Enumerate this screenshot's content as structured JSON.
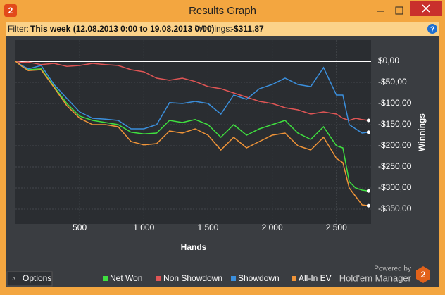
{
  "window": {
    "app_icon": "2",
    "title": "Results Graph",
    "filter_label": "Filter:",
    "filter_value": "This week (12.08.2013 0:00 to 19.08.2013 0:00)",
    "winnings_label": "Winnings:",
    "winnings_value": "-$311,87",
    "help": "?",
    "options_button": "Options",
    "powered_by": "Powered by",
    "brand": "Hold'em Manager",
    "brand_logo": "2"
  },
  "chart_data": {
    "type": "line",
    "x_label": "Hands",
    "y_label": "Winnings",
    "x": [
      0,
      50,
      100,
      200,
      300,
      400,
      500,
      600,
      700,
      800,
      900,
      1000,
      1100,
      1200,
      1300,
      1400,
      1500,
      1600,
      1700,
      1800,
      1900,
      2000,
      2100,
      2200,
      2300,
      2400,
      2500,
      2550,
      2600,
      2650,
      2700,
      2750
    ],
    "series": [
      {
        "name": "Net Won",
        "color": "#3fe03f",
        "values": [
          0,
          -12,
          -20,
          -18,
          -60,
          -100,
          -130,
          -140,
          -145,
          -150,
          -168,
          -172,
          -170,
          -140,
          -145,
          -138,
          -150,
          -180,
          -150,
          -175,
          -160,
          -150,
          -140,
          -170,
          -185,
          -155,
          -200,
          -205,
          -285,
          -300,
          -305,
          -307
        ]
      },
      {
        "name": "Non Showdown",
        "color": "#e05555",
        "values": [
          0,
          -3,
          -2,
          -8,
          -5,
          -12,
          -10,
          -5,
          -8,
          -10,
          -20,
          -25,
          -40,
          -45,
          -40,
          -48,
          -60,
          -65,
          -75,
          -85,
          -95,
          -100,
          -110,
          -115,
          -125,
          -120,
          -125,
          -135,
          -140,
          -135,
          -138,
          -140
        ]
      },
      {
        "name": "Showdown",
        "color": "#3b8fdc",
        "values": [
          0,
          -10,
          -18,
          -10,
          -55,
          -88,
          -120,
          -135,
          -137,
          -140,
          -160,
          -160,
          -150,
          -98,
          -100,
          -95,
          -100,
          -125,
          -80,
          -90,
          -65,
          -55,
          -40,
          -55,
          -60,
          -15,
          -80,
          -80,
          -150,
          -160,
          -170,
          -168
        ]
      },
      {
        "name": "All-In EV",
        "color": "#f09438",
        "values": [
          0,
          -12,
          -22,
          -20,
          -62,
          -105,
          -135,
          -150,
          -150,
          -155,
          -190,
          -198,
          -195,
          -165,
          -170,
          -160,
          -175,
          -210,
          -180,
          -205,
          -190,
          -175,
          -170,
          -200,
          -210,
          -180,
          -230,
          -240,
          -300,
          -320,
          -340,
          -342
        ]
      }
    ],
    "xlim": [
      0,
      2770
    ],
    "xticks": [
      500,
      {
        "value": 1000,
        "label": "1 000"
      },
      {
        "value": 1500,
        "label": "1 500"
      },
      {
        "value": 2000,
        "label": "2 000"
      },
      {
        "value": 2500,
        "label": "2 500"
      }
    ],
    "ylim": [
      -385,
      50
    ],
    "yticks": [
      {
        "value": 0,
        "label": "$0,00"
      },
      {
        "value": -50,
        "label": "-$50,00"
      },
      {
        "value": -100,
        "label": "-$100,00"
      },
      {
        "value": -150,
        "label": "-$150,00"
      },
      {
        "value": -200,
        "label": "-$200,00"
      },
      {
        "value": -250,
        "label": "-$250,00"
      },
      {
        "value": -300,
        "label": "-$300,00"
      },
      {
        "value": -350,
        "label": "-$350,00"
      }
    ],
    "grid": true,
    "zero_line": true,
    "legend": "bottom"
  }
}
